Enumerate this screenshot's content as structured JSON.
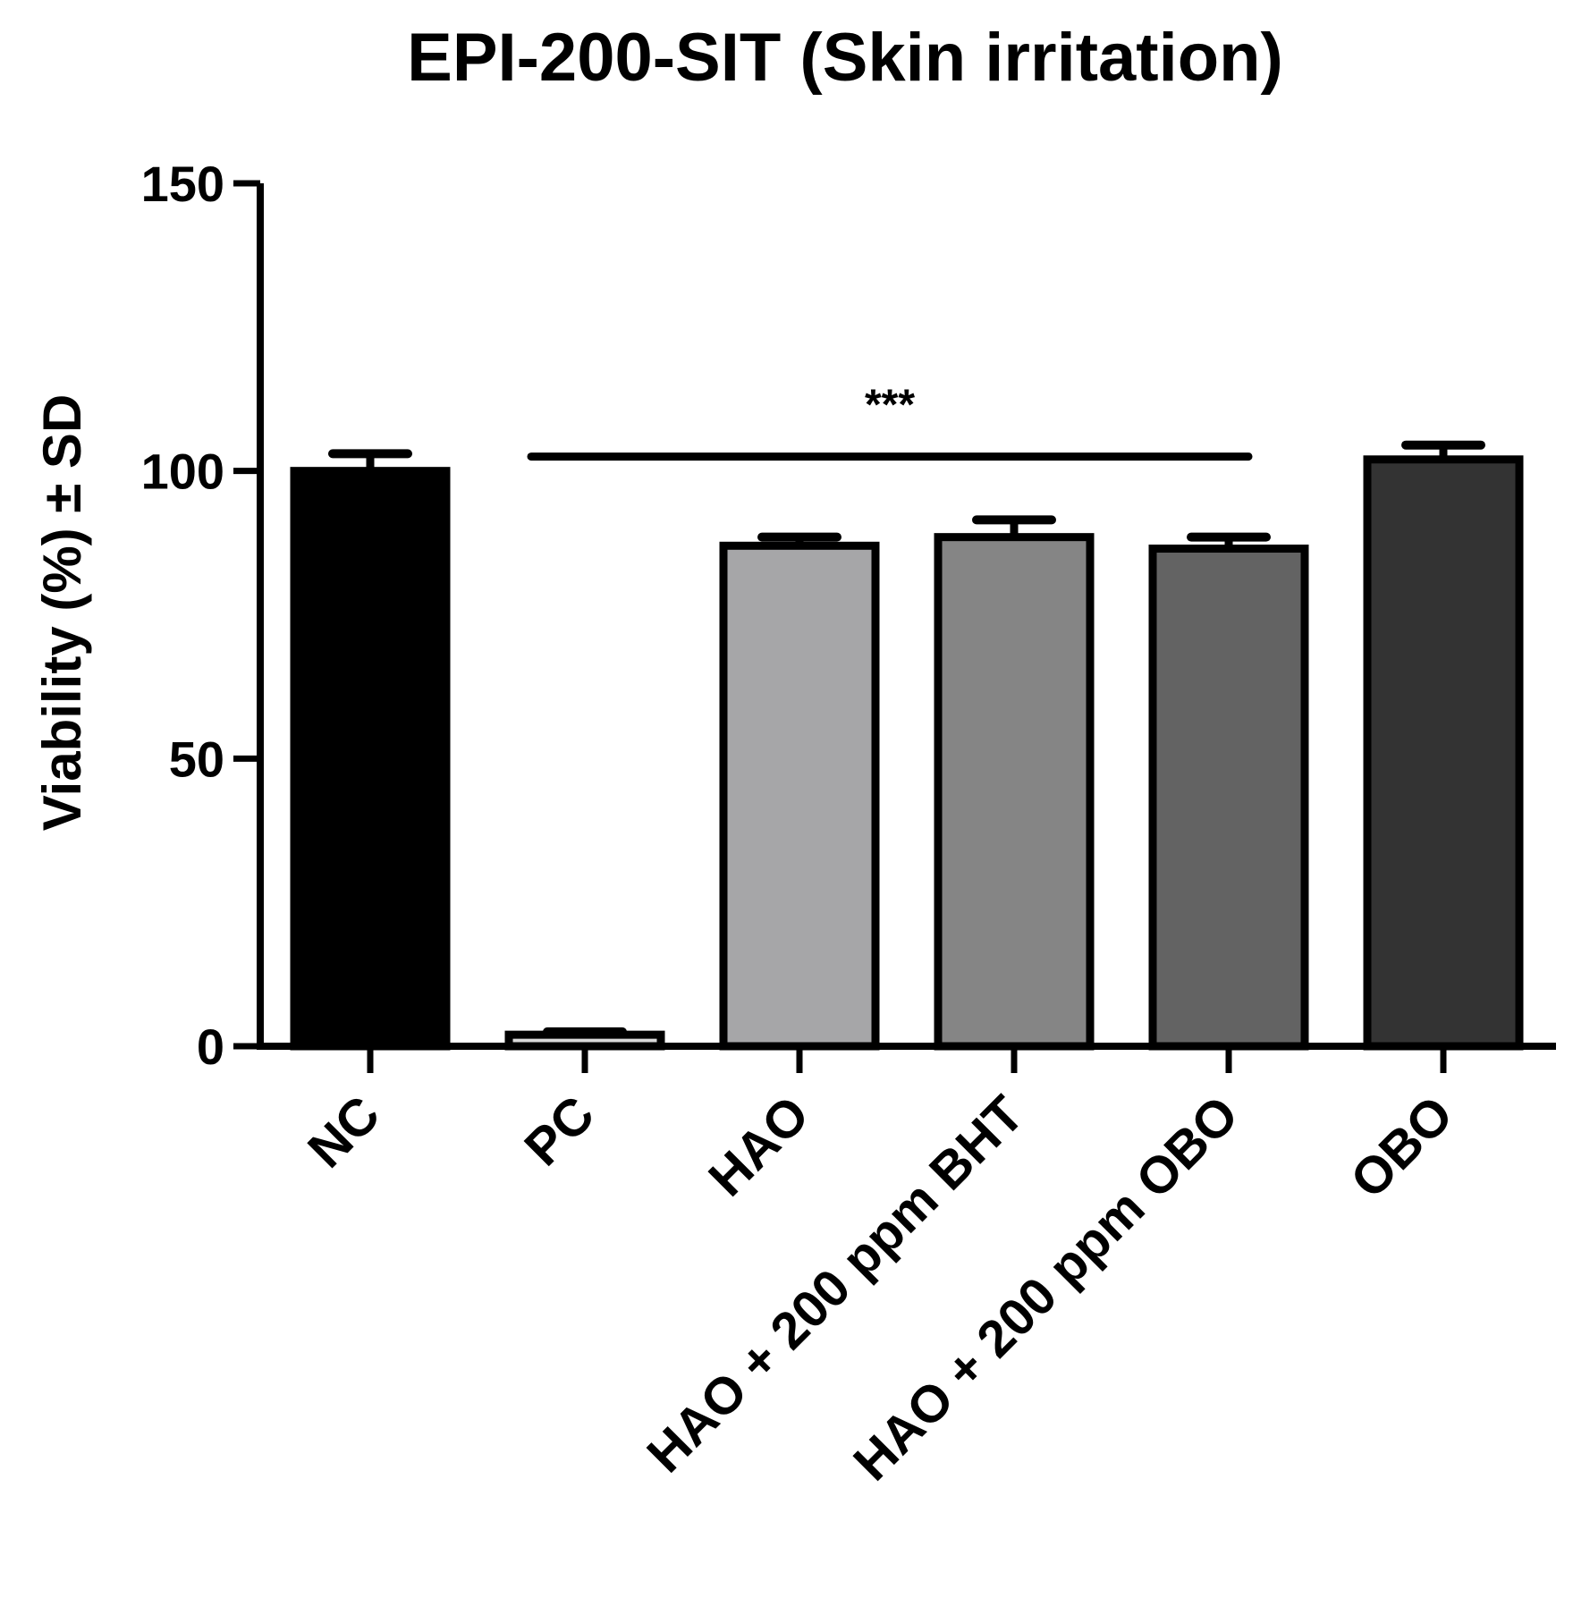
{
  "chart_data": {
    "type": "bar",
    "title": "EPI-200-SIT (Skin irritation)",
    "ylabel": "Viability (%) ± SD",
    "xlabel": "",
    "ylim": [
      0,
      150
    ],
    "yticks": [
      0,
      50,
      100,
      150
    ],
    "grid": false,
    "categories": [
      "NC",
      "PC",
      "HAO",
      "HAO + 200 ppm BHT",
      "HAO + 200 ppm OBO",
      "OBO"
    ],
    "values": [
      100,
      2,
      87,
      88.5,
      86.5,
      102
    ],
    "errors": [
      3,
      0.5,
      1.5,
      3,
      2,
      2.5
    ],
    "bar_colors": [
      "#000000",
      "#d9d9d9",
      "#a6a6a8",
      "#858585",
      "#636363",
      "#333333"
    ],
    "significance": {
      "label": "***",
      "from_category": "PC",
      "to_category": "HAO + 200 ppm OBO",
      "y": 102.5
    }
  }
}
